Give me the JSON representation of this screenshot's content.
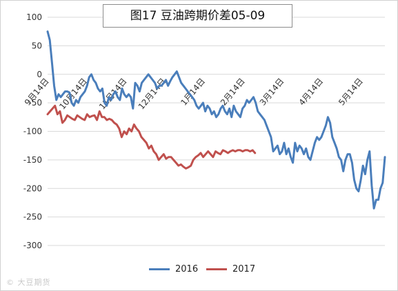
{
  "chart_data": {
    "type": "line",
    "title": "图17 豆油跨期价差05-09",
    "xlabel": "",
    "ylabel": "",
    "ylim": [
      -300,
      100
    ],
    "yticks": [
      100,
      50,
      0,
      -50,
      -100,
      -150,
      -200,
      -250,
      -300
    ],
    "xticks": [
      "9月14日",
      "10月14日",
      "11月14日",
      "12月14日",
      "1月14日",
      "2月14日",
      "3月14日",
      "4月14日",
      "5月14日"
    ],
    "grid": true,
    "legend_position": "bottom",
    "series": [
      {
        "name": "2016",
        "color": "#4a7ebb",
        "values": [
          75,
          60,
          20,
          -20,
          -45,
          -35,
          -40,
          -35,
          -30,
          -30,
          -32,
          -50,
          -55,
          -45,
          -50,
          -40,
          -35,
          -30,
          -20,
          -5,
          0,
          -10,
          -15,
          -25,
          -30,
          -25,
          -50,
          -55,
          -40,
          -45,
          -35,
          -30,
          -40,
          -45,
          -25,
          -35,
          -40,
          -35,
          -40,
          -60,
          -15,
          -20,
          -30,
          -15,
          -10,
          -5,
          0,
          -5,
          -10,
          -15,
          -25,
          -20,
          -20,
          -15,
          -10,
          -20,
          -12,
          -5,
          0,
          5,
          -5,
          -15,
          -20,
          -25,
          -30,
          -35,
          -40,
          -45,
          -55,
          -60,
          -55,
          -50,
          -65,
          -55,
          -60,
          -70,
          -65,
          -75,
          -70,
          -60,
          -55,
          -65,
          -70,
          -60,
          -75,
          -55,
          -65,
          -70,
          -75,
          -60,
          -55,
          -45,
          -50,
          -45,
          -40,
          -50,
          -65,
          -70,
          -75,
          -80,
          -90,
          -100,
          -110,
          -135,
          -130,
          -125,
          -140,
          -135,
          -120,
          -140,
          -130,
          -145,
          -155,
          -120,
          -135,
          -125,
          -130,
          -140,
          -130,
          -145,
          -150,
          -135,
          -120,
          -110,
          -115,
          -110,
          -100,
          -90,
          -75,
          -85,
          -110,
          -120,
          -130,
          -145,
          -150,
          -170,
          -150,
          -140,
          -140,
          -155,
          -185,
          -200,
          -205,
          -185,
          -160,
          -175,
          -150,
          -135,
          -195,
          -235,
          -220,
          -220,
          -200,
          -190,
          -145
        ]
      },
      {
        "name": "2017",
        "color": "#c0504d",
        "values": [
          -70,
          -65,
          -60,
          -55,
          -70,
          -65,
          -85,
          -80,
          -72,
          -75,
          -78,
          -80,
          -72,
          -75,
          -78,
          -80,
          -70,
          -75,
          -73,
          -72,
          -80,
          -65,
          -75,
          -75,
          -80,
          -78,
          -80,
          -85,
          -88,
          -95,
          -110,
          -100,
          -105,
          -95,
          -100,
          -88,
          -95,
          -100,
          -110,
          -115,
          -120,
          -130,
          -125,
          -135,
          -140,
          -150,
          -145,
          -140,
          -148,
          -145,
          -145,
          -150,
          -155,
          -160,
          -158,
          -162,
          -165,
          -163,
          -160,
          -150,
          -145,
          -142,
          -138,
          -145,
          -140,
          -135,
          -140,
          -145,
          -135,
          -138,
          -140,
          -133,
          -135,
          -138,
          -135,
          -133,
          -135,
          -133,
          -133,
          -135,
          -133,
          -133,
          -135,
          -133,
          -138
        ]
      }
    ]
  },
  "watermark": "© 大豆期货"
}
